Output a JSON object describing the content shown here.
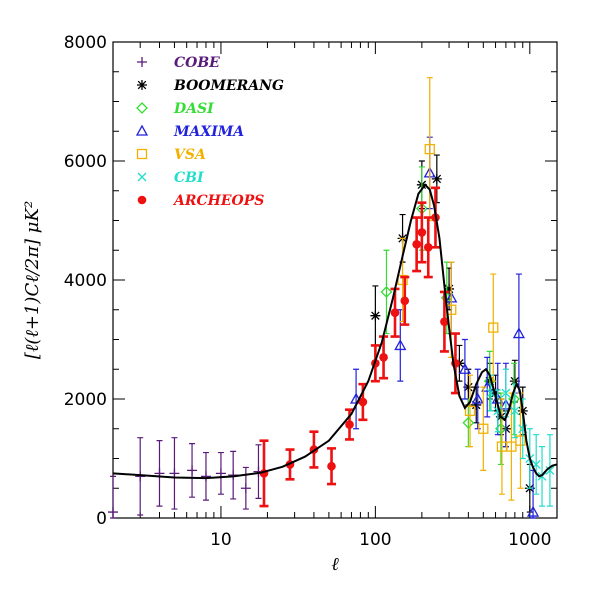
{
  "chart_data": {
    "type": "scatter",
    "x_scale": "log",
    "xlim": [
      2,
      1500
    ],
    "ylim": [
      0,
      8000
    ],
    "xlabel": "ℓ",
    "ylabel": "[ℓ(ℓ+1)Cℓ/2π] μK²",
    "x_ticks": [
      10,
      100,
      1000
    ],
    "x_tick_labels": [
      "10",
      "100",
      "1000"
    ],
    "y_ticks": [
      0,
      2000,
      4000,
      6000,
      8000
    ],
    "y_tick_labels": [
      "0",
      "2000",
      "4000",
      "6000",
      "8000"
    ],
    "legend_position": "top-left",
    "series": [
      {
        "name": "COBE",
        "marker": "plus",
        "color": "#5a1a7a",
        "points": [
          {
            "x": 2,
            "y": 100,
            "err": 600
          },
          {
            "x": 3,
            "y": 700,
            "err": 650
          },
          {
            "x": 4,
            "y": 750,
            "err": 550
          },
          {
            "x": 5,
            "y": 750,
            "err": 600
          },
          {
            "x": 6.5,
            "y": 800,
            "err": 450
          },
          {
            "x": 8,
            "y": 700,
            "err": 400
          },
          {
            "x": 10,
            "y": 750,
            "err": 350
          },
          {
            "x": 12,
            "y": 720,
            "err": 400
          },
          {
            "x": 14.5,
            "y": 500,
            "err": 350
          },
          {
            "x": 17.5,
            "y": 780,
            "err": 450
          }
        ]
      },
      {
        "name": "BOOMERANG",
        "marker": "asterisk",
        "color": "#000000",
        "points": [
          {
            "x": 100,
            "y": 3400,
            "err": 500
          },
          {
            "x": 150,
            "y": 4700,
            "err": 400
          },
          {
            "x": 200,
            "y": 5600,
            "err": 400
          },
          {
            "x": 250,
            "y": 5700,
            "err": 400
          },
          {
            "x": 300,
            "y": 3850,
            "err": 350
          },
          {
            "x": 350,
            "y": 2600,
            "err": 300
          },
          {
            "x": 400,
            "y": 2200,
            "err": 300
          },
          {
            "x": 450,
            "y": 1900,
            "err": 300
          },
          {
            "x": 550,
            "y": 2300,
            "err": 300
          },
          {
            "x": 600,
            "y": 2100,
            "err": 300
          },
          {
            "x": 650,
            "y": 1700,
            "err": 300
          },
          {
            "x": 700,
            "y": 1500,
            "err": 300
          },
          {
            "x": 800,
            "y": 2300,
            "err": 350
          },
          {
            "x": 900,
            "y": 1800,
            "err": 400
          },
          {
            "x": 1000,
            "y": 500,
            "err": 400
          }
        ]
      },
      {
        "name": "DASI",
        "marker": "diamond",
        "color": "#33dd33",
        "points": [
          {
            "x": 118,
            "y": 3800,
            "err": 700
          },
          {
            "x": 200,
            "y": 5200,
            "err": 700
          },
          {
            "x": 290,
            "y": 3700,
            "err": 600
          },
          {
            "x": 400,
            "y": 1600,
            "err": 400
          },
          {
            "x": 550,
            "y": 2300,
            "err": 500
          },
          {
            "x": 650,
            "y": 1500,
            "err": 600
          },
          {
            "x": 790,
            "y": 2000,
            "err": 600
          }
        ]
      },
      {
        "name": "MAXIMA",
        "marker": "triangle",
        "color": "#2222dd",
        "points": [
          {
            "x": 75,
            "y": 2000,
            "err": 500
          },
          {
            "x": 145,
            "y": 2900,
            "err": 600
          },
          {
            "x": 225,
            "y": 5800,
            "err": 600
          },
          {
            "x": 310,
            "y": 3700,
            "err": 600
          },
          {
            "x": 380,
            "y": 2500,
            "err": 500
          },
          {
            "x": 460,
            "y": 2000,
            "err": 500
          },
          {
            "x": 530,
            "y": 2200,
            "err": 500
          },
          {
            "x": 620,
            "y": 2000,
            "err": 600
          },
          {
            "x": 700,
            "y": 1900,
            "err": 700
          },
          {
            "x": 850,
            "y": 3100,
            "err": 1000
          },
          {
            "x": 1050,
            "y": 100,
            "err": 700
          }
        ]
      },
      {
        "name": "VSA",
        "marker": "square",
        "color": "#f2b000",
        "points": [
          {
            "x": 150,
            "y": 4000,
            "err": 700
          },
          {
            "x": 225,
            "y": 6200,
            "err": 1200
          },
          {
            "x": 310,
            "y": 3500,
            "err": 800
          },
          {
            "x": 410,
            "y": 1800,
            "err": 600
          },
          {
            "x": 500,
            "y": 1500,
            "err": 700
          },
          {
            "x": 580,
            "y": 3200,
            "err": 900
          },
          {
            "x": 660,
            "y": 1200,
            "err": 800
          },
          {
            "x": 760,
            "y": 1200,
            "err": 900
          },
          {
            "x": 870,
            "y": 1300,
            "err": 800
          }
        ]
      },
      {
        "name": "CBI",
        "marker": "cross",
        "color": "#22ddcc",
        "points": [
          {
            "x": 560,
            "y": 2100,
            "err": 300
          },
          {
            "x": 620,
            "y": 1800,
            "err": 350
          },
          {
            "x": 700,
            "y": 2100,
            "err": 400
          },
          {
            "x": 800,
            "y": 1800,
            "err": 450
          },
          {
            "x": 900,
            "y": 1500,
            "err": 500
          },
          {
            "x": 1000,
            "y": 1000,
            "err": 500
          },
          {
            "x": 1100,
            "y": 900,
            "err": 500
          },
          {
            "x": 1200,
            "y": 700,
            "err": 500
          },
          {
            "x": 1350,
            "y": 800,
            "err": 600
          }
        ]
      },
      {
        "name": "ARCHEOPS",
        "marker": "circle",
        "color": "#ee1111",
        "points": [
          {
            "x": 19,
            "y": 750,
            "err": 550
          },
          {
            "x": 28,
            "y": 900,
            "err": 250
          },
          {
            "x": 40,
            "y": 1150,
            "err": 300
          },
          {
            "x": 52,
            "y": 870,
            "err": 300
          },
          {
            "x": 68,
            "y": 1570,
            "err": 250
          },
          {
            "x": 83,
            "y": 1950,
            "err": 300
          },
          {
            "x": 100,
            "y": 2600,
            "err": 300
          },
          {
            "x": 113,
            "y": 2700,
            "err": 350
          },
          {
            "x": 134,
            "y": 3450,
            "err": 400
          },
          {
            "x": 155,
            "y": 3650,
            "err": 400
          },
          {
            "x": 185,
            "y": 4600,
            "err": 450
          },
          {
            "x": 200,
            "y": 4800,
            "err": 500
          },
          {
            "x": 220,
            "y": 4550,
            "err": 500
          },
          {
            "x": 245,
            "y": 5050,
            "err": 500
          },
          {
            "x": 280,
            "y": 3300,
            "err": 500
          },
          {
            "x": 330,
            "y": 2600,
            "err": 500
          }
        ]
      }
    ],
    "model_curve": {
      "color": "#000000",
      "points": [
        [
          2,
          750
        ],
        [
          3,
          720
        ],
        [
          5,
          680
        ],
        [
          8,
          670
        ],
        [
          12,
          700
        ],
        [
          18,
          760
        ],
        [
          25,
          860
        ],
        [
          35,
          1030
        ],
        [
          50,
          1300
        ],
        [
          70,
          1750
        ],
        [
          90,
          2300
        ],
        [
          110,
          2950
        ],
        [
          130,
          3700
        ],
        [
          150,
          4400
        ],
        [
          170,
          5000
        ],
        [
          190,
          5450
        ],
        [
          210,
          5600
        ],
        [
          225,
          5520
        ],
        [
          240,
          5250
        ],
        [
          260,
          4700
        ],
        [
          280,
          3900
        ],
        [
          300,
          3200
        ],
        [
          320,
          2600
        ],
        [
          350,
          2050
        ],
        [
          380,
          1850
        ],
        [
          410,
          1950
        ],
        [
          450,
          2250
        ],
        [
          490,
          2450
        ],
        [
          520,
          2500
        ],
        [
          550,
          2400
        ],
        [
          600,
          2050
        ],
        [
          650,
          1700
        ],
        [
          690,
          1650
        ],
        [
          730,
          1800
        ],
        [
          780,
          2100
        ],
        [
          820,
          2250
        ],
        [
          860,
          2150
        ],
        [
          900,
          1800
        ],
        [
          950,
          1300
        ],
        [
          1000,
          1000
        ],
        [
          1050,
          850
        ],
        [
          1100,
          750
        ],
        [
          1150,
          700
        ],
        [
          1200,
          720
        ],
        [
          1300,
          820
        ],
        [
          1400,
          880
        ],
        [
          1500,
          900
        ]
      ]
    }
  }
}
